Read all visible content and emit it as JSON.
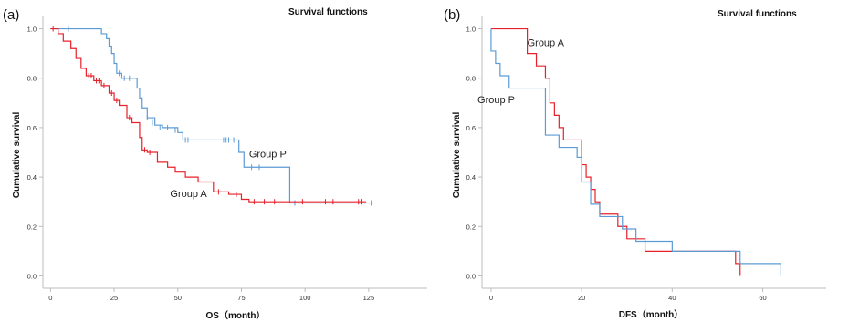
{
  "chart_data": [
    {
      "type": "line",
      "panel_label": "(a)",
      "title": "Survival functions",
      "xlabel": "OS（month）",
      "ylabel": "Cumulative survival",
      "xlim": [
        -3,
        148
      ],
      "ylim": [
        -0.05,
        1.05
      ],
      "xticks": [
        "0",
        "25",
        "50",
        "75",
        "100",
        "125"
      ],
      "yticks": [
        "0.0",
        "0.2",
        "0.4",
        "0.6",
        "0.8",
        "1.0"
      ],
      "annotations": [
        {
          "text": "Group P",
          "x": 78,
          "y": 0.48
        },
        {
          "text": "Group A",
          "x": 47,
          "y": 0.32
        }
      ],
      "series": [
        {
          "name": "Group P",
          "color": "#5b9bd5",
          "points": [
            [
              0,
              1.0
            ],
            [
              20,
              1.0
            ],
            [
              20,
              0.98
            ],
            [
              22,
              0.98
            ],
            [
              22,
              0.96
            ],
            [
              23,
              0.96
            ],
            [
              23,
              0.93
            ],
            [
              24,
              0.93
            ],
            [
              24,
              0.9
            ],
            [
              25,
              0.9
            ],
            [
              25,
              0.86
            ],
            [
              26,
              0.86
            ],
            [
              26,
              0.82
            ],
            [
              28,
              0.82
            ],
            [
              28,
              0.8
            ],
            [
              34,
              0.8
            ],
            [
              34,
              0.76
            ],
            [
              35,
              0.76
            ],
            [
              35,
              0.72
            ],
            [
              36,
              0.72
            ],
            [
              36,
              0.68
            ],
            [
              38,
              0.68
            ],
            [
              38,
              0.64
            ],
            [
              41,
              0.64
            ],
            [
              41,
              0.61
            ],
            [
              44,
              0.61
            ],
            [
              44,
              0.6
            ],
            [
              50,
              0.6
            ],
            [
              50,
              0.58
            ],
            [
              52,
              0.58
            ],
            [
              52,
              0.55
            ],
            [
              74,
              0.55
            ],
            [
              74,
              0.5
            ],
            [
              76,
              0.5
            ],
            [
              76,
              0.44
            ],
            [
              94,
              0.44
            ],
            [
              94,
              0.295
            ],
            [
              127,
              0.295
            ]
          ],
          "censors": [
            [
              7,
              1.0
            ],
            [
              27,
              0.82
            ],
            [
              29,
              0.8
            ],
            [
              31,
              0.8
            ],
            [
              38,
              0.64
            ],
            [
              40,
              0.62
            ],
            [
              43,
              0.6
            ],
            [
              46,
              0.6
            ],
            [
              49,
              0.59
            ],
            [
              53,
              0.55
            ],
            [
              54,
              0.55
            ],
            [
              68,
              0.55
            ],
            [
              69,
              0.55
            ],
            [
              70,
              0.55
            ],
            [
              72,
              0.55
            ],
            [
              79,
              0.44
            ],
            [
              82,
              0.44
            ],
            [
              96,
              0.295
            ],
            [
              126,
              0.295
            ]
          ]
        },
        {
          "name": "Group A",
          "color": "#e8202a",
          "points": [
            [
              0,
              1.0
            ],
            [
              3,
              1.0
            ],
            [
              3,
              0.98
            ],
            [
              5,
              0.98
            ],
            [
              5,
              0.95
            ],
            [
              8,
              0.95
            ],
            [
              8,
              0.92
            ],
            [
              10,
              0.92
            ],
            [
              10,
              0.88
            ],
            [
              12,
              0.88
            ],
            [
              12,
              0.84
            ],
            [
              14,
              0.84
            ],
            [
              14,
              0.81
            ],
            [
              17,
              0.81
            ],
            [
              17,
              0.79
            ],
            [
              20,
              0.79
            ],
            [
              20,
              0.77
            ],
            [
              23,
              0.77
            ],
            [
              23,
              0.74
            ],
            [
              25,
              0.74
            ],
            [
              25,
              0.71
            ],
            [
              27,
              0.71
            ],
            [
              27,
              0.69
            ],
            [
              30,
              0.69
            ],
            [
              30,
              0.64
            ],
            [
              32,
              0.64
            ],
            [
              32,
              0.62
            ],
            [
              35,
              0.62
            ],
            [
              35,
              0.56
            ],
            [
              36,
              0.56
            ],
            [
              36,
              0.51
            ],
            [
              38,
              0.51
            ],
            [
              38,
              0.5
            ],
            [
              42,
              0.5
            ],
            [
              42,
              0.46
            ],
            [
              46,
              0.46
            ],
            [
              46,
              0.44
            ],
            [
              49,
              0.44
            ],
            [
              49,
              0.42
            ],
            [
              53,
              0.42
            ],
            [
              53,
              0.4
            ],
            [
              58,
              0.4
            ],
            [
              58,
              0.38
            ],
            [
              64,
              0.38
            ],
            [
              64,
              0.34
            ],
            [
              70,
              0.34
            ],
            [
              70,
              0.33
            ],
            [
              75,
              0.33
            ],
            [
              75,
              0.31
            ],
            [
              78,
              0.31
            ],
            [
              78,
              0.3
            ],
            [
              124,
              0.3
            ]
          ],
          "censors": [
            [
              1,
              1.0
            ],
            [
              15,
              0.81
            ],
            [
              16,
              0.81
            ],
            [
              18,
              0.79
            ],
            [
              19,
              0.79
            ],
            [
              21,
              0.77
            ],
            [
              24,
              0.74
            ],
            [
              26,
              0.71
            ],
            [
              31,
              0.64
            ],
            [
              37,
              0.51
            ],
            [
              39,
              0.5
            ],
            [
              66,
              0.34
            ],
            [
              73,
              0.33
            ],
            [
              80,
              0.3
            ],
            [
              84,
              0.3
            ],
            [
              88,
              0.3
            ],
            [
              99,
              0.3
            ],
            [
              108,
              0.3
            ],
            [
              111,
              0.3
            ],
            [
              121,
              0.3
            ],
            [
              122,
              0.3
            ]
          ]
        }
      ]
    },
    {
      "type": "line",
      "panel_label": "(b)",
      "title": "Survival functions",
      "xlabel": "DFS（month）",
      "ylabel": "Cumulative survival",
      "xlim": [
        -2,
        74
      ],
      "ylim": [
        -0.05,
        1.05
      ],
      "xticks": [
        "0",
        "20",
        "40",
        "60"
      ],
      "yticks": [
        "0.0",
        "0.2",
        "0.4",
        "0.6",
        "0.8",
        "1.0"
      ],
      "annotations": [
        {
          "text": "Group A",
          "x": 8,
          "y": 0.93
        },
        {
          "text": "Group P",
          "x": -3,
          "y": 0.7
        }
      ],
      "series": [
        {
          "name": "Group A",
          "color": "#e8202a",
          "points": [
            [
              0,
              1.0
            ],
            [
              8,
              1.0
            ],
            [
              8,
              0.9
            ],
            [
              10,
              0.9
            ],
            [
              10,
              0.85
            ],
            [
              12,
              0.85
            ],
            [
              12,
              0.8
            ],
            [
              13,
              0.8
            ],
            [
              13,
              0.7
            ],
            [
              14,
              0.7
            ],
            [
              14,
              0.65
            ],
            [
              15,
              0.65
            ],
            [
              15,
              0.6
            ],
            [
              16,
              0.6
            ],
            [
              16,
              0.55
            ],
            [
              20,
              0.55
            ],
            [
              20,
              0.45
            ],
            [
              21,
              0.45
            ],
            [
              21,
              0.4
            ],
            [
              22,
              0.4
            ],
            [
              22,
              0.35
            ],
            [
              23,
              0.35
            ],
            [
              23,
              0.3
            ],
            [
              24,
              0.3
            ],
            [
              24,
              0.25
            ],
            [
              28,
              0.25
            ],
            [
              28,
              0.2
            ],
            [
              30,
              0.2
            ],
            [
              30,
              0.15
            ],
            [
              34,
              0.15
            ],
            [
              34,
              0.1
            ],
            [
              54,
              0.1
            ],
            [
              54,
              0.05
            ],
            [
              55,
              0.05
            ],
            [
              55,
              0.0
            ]
          ],
          "censors": []
        },
        {
          "name": "Group P",
          "color": "#5b9bd5",
          "points": [
            [
              0,
              1.0
            ],
            [
              0,
              0.91
            ],
            [
              1,
              0.91
            ],
            [
              1,
              0.86
            ],
            [
              2,
              0.86
            ],
            [
              2,
              0.81
            ],
            [
              4,
              0.81
            ],
            [
              4,
              0.76
            ],
            [
              12,
              0.76
            ],
            [
              12,
              0.57
            ],
            [
              15,
              0.57
            ],
            [
              15,
              0.52
            ],
            [
              19,
              0.52
            ],
            [
              19,
              0.48
            ],
            [
              20,
              0.48
            ],
            [
              20,
              0.38
            ],
            [
              22,
              0.38
            ],
            [
              22,
              0.29
            ],
            [
              24,
              0.29
            ],
            [
              24,
              0.24
            ],
            [
              29,
              0.24
            ],
            [
              29,
              0.19
            ],
            [
              32,
              0.19
            ],
            [
              32,
              0.14
            ],
            [
              40,
              0.14
            ],
            [
              40,
              0.1
            ],
            [
              55,
              0.1
            ],
            [
              55,
              0.05
            ],
            [
              64,
              0.05
            ],
            [
              64,
              0.0
            ]
          ],
          "censors": []
        }
      ]
    }
  ]
}
